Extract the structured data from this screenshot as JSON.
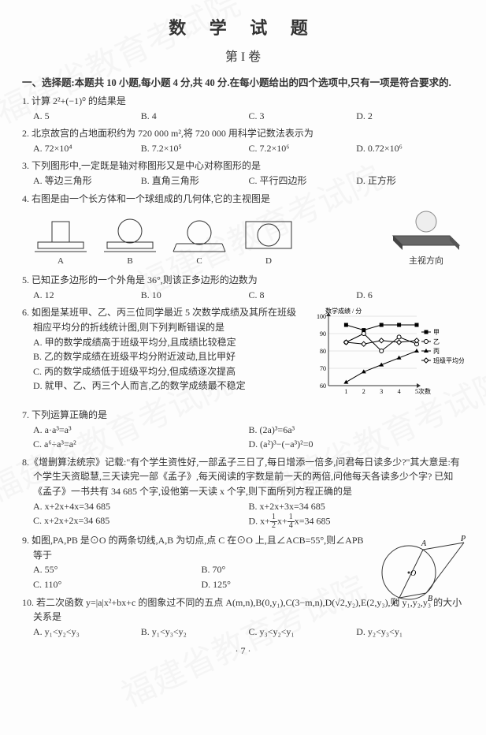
{
  "title": "数 学 试 题",
  "subtitle": "第 I 卷",
  "section1": "一、选择题:本题共 10 小题,每小题 4 分,共 40 分.在每小题给出的四个选项中,只有一项是符合要求的.",
  "q1": {
    "text": "1. 计算 2²+(−1)⁰ 的结果是",
    "A": "A. 5",
    "B": "B. 4",
    "C": "C. 3",
    "D": "D. 2"
  },
  "q2": {
    "text": "2. 北京故宫的占地面积约为 720 000 m²,将 720 000 用科学记数法表示为",
    "A": "A. 72×10⁴",
    "B": "B. 7.2×10⁵",
    "C": "C. 7.2×10⁶",
    "D": "D. 0.72×10⁶"
  },
  "q3": {
    "text": "3. 下列图形中,一定既是轴对称图形又是中心对称图形的是",
    "A": "A. 等边三角形",
    "B": "B. 直角三角形",
    "C": "C. 平行四边形",
    "D": "D. 正方形"
  },
  "q4": {
    "text": "4. 右图是由一个长方体和一个球组成的几何体,它的主视图是",
    "A": "A",
    "B": "B",
    "C": "C",
    "D": "D",
    "caption": "主视方向"
  },
  "q5": {
    "text": "5. 已知正多边形的一个外角是 36°,则该正多边形的边数为",
    "A": "A. 12",
    "B": "B. 10",
    "C": "C. 8",
    "D": "D. 6"
  },
  "q6": {
    "text": "6. 如图是某班甲、乙、丙三位同学最近 5 次数学成绩及其所在班级相应平均分的折线统计图,则下列判断错误的是",
    "A": "A. 甲的数学成绩高于班级平均分,且成绩比较稳定",
    "B": "B. 乙的数学成绩在班级平均分附近波动,且比甲好",
    "C": "C. 丙的数学成绩低于班级平均分,但成绩逐次提高",
    "D": "D. 就甲、乙、丙三个人而言,乙的数学成绩最不稳定",
    "chart": {
      "ylabel": "数学成绩 / 分",
      "xlabel": "次数",
      "yticks": [
        "60",
        "70",
        "80",
        "90",
        "100"
      ],
      "xticks": [
        "1",
        "2",
        "3",
        "4",
        "5"
      ],
      "series": {
        "甲": {
          "marker": "square",
          "color": "#000",
          "points": [
            [
              1,
              95
            ],
            [
              2,
              92
            ],
            [
              3,
              95
            ],
            [
              4,
              95
            ],
            [
              5,
              95
            ]
          ]
        },
        "乙": {
          "marker": "circle-open",
          "color": "#000",
          "points": [
            [
              1,
              85
            ],
            [
              2,
              90
            ],
            [
              3,
              80
            ],
            [
              4,
              88
            ],
            [
              5,
              84
            ]
          ]
        },
        "丙": {
          "marker": "triangle",
          "color": "#000",
          "points": [
            [
              1,
              62
            ],
            [
              2,
              68
            ],
            [
              3,
              72
            ],
            [
              4,
              76
            ],
            [
              5,
              80
            ]
          ]
        },
        "班级平均分": {
          "marker": "diamond-open",
          "color": "#000",
          "points": [
            [
              1,
              85
            ],
            [
              2,
              84
            ],
            [
              3,
              86
            ],
            [
              4,
              85
            ],
            [
              5,
              86
            ]
          ]
        }
      },
      "legend": [
        "甲",
        "乙",
        "丙",
        "班级平均分"
      ],
      "ylim": [
        60,
        100
      ],
      "xlim": [
        0,
        5
      ],
      "grid_color": "#ccc",
      "bg": "#fff"
    }
  },
  "q7": {
    "text": "7. 下列运算正确的是",
    "A": "A. a·a³=a³",
    "B": "B. (2a)³=6a³",
    "C": "C. a⁶÷a³=a²",
    "D": "D. (a²)³−(−a³)²=0"
  },
  "q8": {
    "text": "8.《增删算法统宗》记载:\"有个学生资性好,一部孟子三日了,每日增添一倍多,问君每日读多少?\"其大意是:有个学生天资聪慧,三天读完一部《孟子》,每天阅读的字数是前一天的两倍,问他每天各读多少个字? 已知《孟子》一书共有 34 685 个字,设他第一天读 x 个字,则下面所列方程正确的是",
    "A": "A. x+2x+4x=34 685",
    "B": "B. x+2x+3x=34 685",
    "C": "C. x+2x+2x=34 685",
    "D": "D. x+½x+¼x=34 685"
  },
  "q9": {
    "text": "9. 如图,PA,PB 是⊙O 的两条切线,A,B 为切点,点 C 在⊙O 上,且∠ACB=55°,则∠APB 等于",
    "A": "A. 55°",
    "B": "B. 70°",
    "C": "C. 110°",
    "D": "D. 125°",
    "labels": {
      "A": "A",
      "B": "B",
      "C": "C",
      "O": "O",
      "P": "P"
    }
  },
  "q10": {
    "text": "10. 若二次函数 y=|a|x²+bx+c 的图象过不同的五点 A(m,n),B(0,y₁),C(3−m,n),D(√2,y₂),E(2,y₃),则 y₁,y₂,y₃ 的大小关系是",
    "A": "A. y₁<y₂<y₃",
    "B": "B. y₁<y₃<y₂",
    "C": "C. y₃<y₂<y₁",
    "D": "D. y₂<y₃<y₁"
  },
  "pagenum": "· 7 ·",
  "watermark": "福建省教育考试院"
}
